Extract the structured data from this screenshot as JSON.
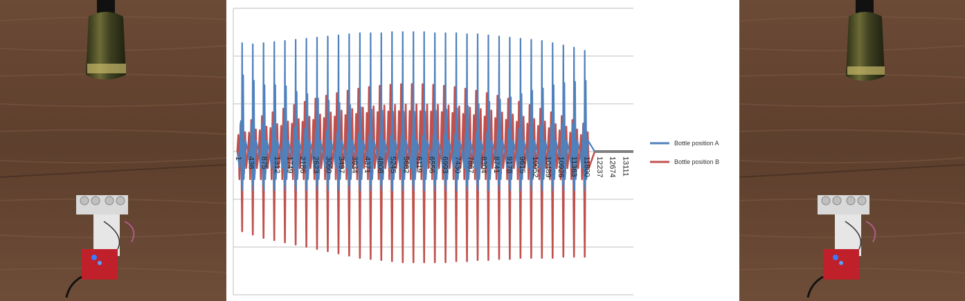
{
  "chart_data": {
    "type": "line",
    "title": "",
    "xlabel": "",
    "ylabel": "",
    "x_tick_labels": [
      "1",
      "438",
      "875",
      "1312",
      "1749",
      "2186",
      "2623",
      "3060",
      "3497",
      "3934",
      "4371",
      "4808",
      "5245",
      "5682",
      "6119",
      "6556",
      "6993",
      "7430",
      "7867",
      "8304",
      "8741",
      "9178",
      "9615",
      "10052",
      "10489",
      "10926",
      "11363",
      "11800",
      "12237",
      "12674",
      "13111"
    ],
    "x_range": [
      1,
      13548
    ],
    "grid": true,
    "y_axis_labels_shown": false,
    "legend_position": "right",
    "series": [
      {
        "name": "Bottle position A",
        "color": "#4f81bd",
        "peak_count": 33,
        "peaks": [
          0.98,
          0.97,
          0.98,
          0.99,
          1.0,
          1.01,
          1.02,
          1.03,
          1.04,
          1.05,
          1.06,
          1.07,
          1.07,
          1.07,
          1.08,
          1.08,
          1.08,
          1.08,
          1.07,
          1.07,
          1.07,
          1.06,
          1.06,
          1.05,
          1.04,
          1.03,
          1.02,
          1.01,
          1.0,
          0.98,
          0.96,
          0.94,
          0.91
        ],
        "secondary_peaks": [
          0.69,
          0.64,
          0.6,
          0.6,
          0.59,
          0.54,
          0.52,
          0.48,
          0.46,
          0.44,
          0.42,
          0.4,
          0.38,
          0.37,
          0.36,
          0.36,
          0.36,
          0.36,
          0.37,
          0.38,
          0.39,
          0.41,
          0.43,
          0.45,
          0.47,
          0.49,
          0.52,
          0.55,
          0.57,
          0.6,
          0.62,
          0.63,
          0.64
        ],
        "trough_min": -0.6
      },
      {
        "name": "Bottle position B",
        "color": "#c0504d",
        "peak_count": 33,
        "troughs": [
          -0.72,
          -0.75,
          -0.78,
          -0.8,
          -0.82,
          -0.84,
          -0.86,
          -0.88,
          -0.9,
          -0.92,
          -0.94,
          -0.96,
          -0.97,
          -0.98,
          -0.99,
          -1.0,
          -1.0,
          -1.0,
          -1.0,
          -1.0,
          -0.99,
          -0.99,
          -0.98,
          -0.98,
          -0.97,
          -0.97,
          -0.96,
          -0.96,
          -0.96,
          -0.96,
          -0.95,
          -0.95,
          -0.95
        ],
        "positive_peak_max": 0.65
      }
    ],
    "flat_segment": {
      "from": 12237,
      "to": 13548,
      "value": 0,
      "color": "#7f7f7f"
    }
  }
}
